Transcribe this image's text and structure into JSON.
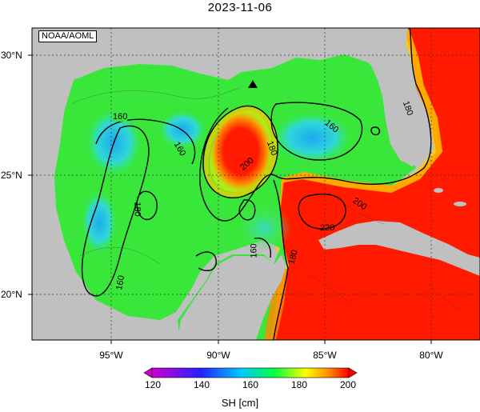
{
  "title": "2023-11-06",
  "credit": "NOAA/AOML",
  "lat_labels": [
    "30°N",
    "25°N",
    "20°N"
  ],
  "lon_labels": [
    "95°W",
    "90°W",
    "85°W",
    "80°W"
  ],
  "contour_labels": [
    "160",
    "160",
    "160",
    "160",
    "160",
    "180",
    "180",
    "180",
    "180",
    "200",
    "200",
    "220"
  ],
  "colorbar": {
    "ticks": [
      "120",
      "140",
      "160",
      "180",
      "200"
    ],
    "units": "SH [cm]",
    "range": [
      120,
      200
    ],
    "colors": [
      "#cc00cc",
      "#2222ff",
      "#00c8ff",
      "#00ff44",
      "#ffff00",
      "#ff8800",
      "#ff0000"
    ]
  },
  "colors": {
    "land": "#c0c0c0",
    "warm": "#ff1a00",
    "cool": "#27c8e8",
    "mid": "#33ee33"
  },
  "marker": "triangle"
}
